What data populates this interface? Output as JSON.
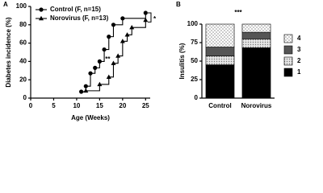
{
  "chart_data": [
    {
      "type": "line",
      "step": true,
      "panel_label": "A",
      "xlabel": "Age (Weeks)",
      "ylabel": "Diabetes incidence (%)",
      "xlim": [
        0,
        26
      ],
      "xticks": [
        0,
        5,
        10,
        15,
        20,
        25
      ],
      "ylim": [
        0,
        100
      ],
      "yticks": [
        0,
        20,
        40,
        60,
        80,
        100
      ],
      "legend": "top-left",
      "series": [
        {
          "name": "Control (F, n=15)",
          "color": "#000000",
          "marker": "circle",
          "x": [
            11,
            12,
            13,
            14,
            15,
            16,
            17,
            18,
            20,
            25
          ],
          "values": [
            7,
            13,
            27,
            33,
            40,
            53,
            67,
            80,
            87,
            93
          ]
        },
        {
          "name": "Norovirus (F, n=13)",
          "color": "#000000",
          "marker": "triangle",
          "x": [
            12,
            15,
            17,
            18,
            19,
            20,
            21,
            22,
            25
          ],
          "values": [
            8,
            15,
            23,
            38,
            46,
            62,
            69,
            77,
            85
          ]
        }
      ],
      "annotations": [
        "**",
        "*"
      ]
    },
    {
      "type": "stacked_bar",
      "panel_label": "B",
      "title": "***",
      "ylabel": "Insulitis (%)",
      "categories": [
        "Control",
        "Norovirus"
      ],
      "ylim": [
        0,
        100
      ],
      "yticks": [
        0,
        25,
        50,
        75,
        100
      ],
      "legend": "right",
      "series": [
        {
          "name": "1",
          "color": "#000000",
          "values": [
            45,
            68
          ]
        },
        {
          "name": "2",
          "color": "#d0d0d0",
          "pattern": "dots",
          "values": [
            12,
            12
          ]
        },
        {
          "name": "3",
          "color": "#555555",
          "values": [
            12,
            9
          ]
        },
        {
          "name": "4",
          "color": "#ffffff",
          "pattern": "crosshatch",
          "values": [
            31,
            11
          ]
        }
      ]
    }
  ]
}
